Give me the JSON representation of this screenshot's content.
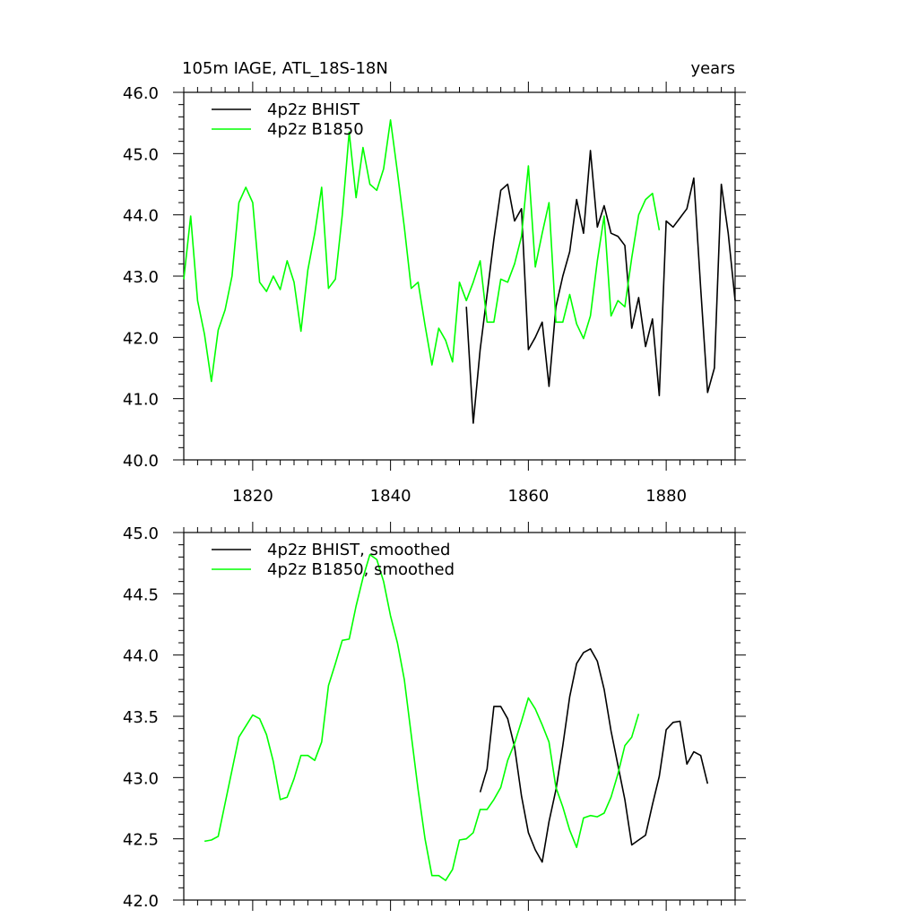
{
  "header": {
    "left_title": "105m IAGE, ATL_18S-18N",
    "right_title": "years"
  },
  "colors": {
    "bhist": "#000000",
    "b1850": "#00ff00",
    "axis": "#000000"
  },
  "chart_data": [
    {
      "type": "line",
      "title": "",
      "xlabel": "",
      "ylabel": "",
      "xlim": [
        1810,
        1890
      ],
      "ylim": [
        40.0,
        46.0
      ],
      "x_ticks": [
        1820,
        1840,
        1860,
        1880
      ],
      "y_ticks": [
        "40.0",
        "41.0",
        "42.0",
        "43.0",
        "44.0",
        "45.0",
        "46.0"
      ],
      "legend_position": "top-left",
      "series": [
        {
          "name": "4p2z BHIST",
          "color": "#000000",
          "x": [
            1851,
            1852,
            1853,
            1854,
            1855,
            1856,
            1857,
            1858,
            1859,
            1860,
            1861,
            1862,
            1863,
            1864,
            1865,
            1866,
            1867,
            1868,
            1869,
            1870,
            1871,
            1872,
            1873,
            1874,
            1875,
            1876,
            1877,
            1878,
            1879,
            1880,
            1881,
            1882,
            1883,
            1884,
            1885,
            1886,
            1887,
            1888,
            1889,
            1890
          ],
          "y": [
            42.5,
            40.6,
            41.8,
            42.7,
            43.6,
            44.4,
            44.5,
            43.9,
            44.1,
            41.8,
            42.0,
            42.25,
            41.2,
            42.5,
            43.0,
            43.4,
            44.25,
            43.7,
            45.05,
            43.8,
            44.15,
            43.7,
            43.65,
            43.5,
            42.15,
            42.65,
            41.85,
            42.3,
            41.05,
            43.9,
            43.8,
            43.95,
            44.1,
            44.6,
            42.8,
            41.1,
            41.5,
            44.5,
            43.7,
            42.6
          ]
        },
        {
          "name": "4p2z B1850",
          "color": "#00ff00",
          "x": [
            1810,
            1811,
            1812,
            1813,
            1814,
            1815,
            1816,
            1817,
            1818,
            1819,
            1820,
            1821,
            1822,
            1823,
            1824,
            1825,
            1826,
            1827,
            1828,
            1829,
            1830,
            1831,
            1832,
            1833,
            1834,
            1835,
            1836,
            1837,
            1838,
            1839,
            1840,
            1841,
            1842,
            1843,
            1844,
            1845,
            1846,
            1847,
            1848,
            1849,
            1850,
            1851,
            1852,
            1853,
            1854,
            1855,
            1856,
            1857,
            1858,
            1859,
            1860,
            1861,
            1862,
            1863,
            1864,
            1865,
            1866,
            1867,
            1868,
            1869,
            1870,
            1871,
            1872,
            1873,
            1874,
            1875,
            1876,
            1877,
            1878,
            1879
          ],
          "y": [
            42.95,
            43.98,
            42.6,
            42.05,
            41.28,
            42.12,
            42.45,
            43.0,
            44.2,
            44.45,
            44.2,
            42.9,
            42.75,
            43.0,
            42.78,
            43.25,
            42.9,
            42.1,
            43.1,
            43.7,
            44.45,
            42.8,
            42.95,
            44.0,
            45.35,
            44.28,
            45.1,
            44.5,
            44.4,
            44.75,
            45.55,
            44.7,
            43.8,
            42.8,
            42.9,
            42.2,
            41.55,
            42.15,
            41.95,
            41.6,
            42.9,
            42.6,
            42.9,
            43.25,
            42.25,
            42.25,
            42.95,
            42.9,
            43.2,
            43.65,
            44.8,
            43.15,
            43.7,
            44.2,
            42.25,
            42.25,
            42.7,
            42.22,
            41.98,
            42.35,
            43.25,
            43.98,
            42.35,
            42.6,
            42.5,
            43.3,
            44.0,
            44.25,
            44.35,
            43.75
          ]
        }
      ]
    },
    {
      "type": "line",
      "title": "",
      "xlabel": "",
      "ylabel": "",
      "xlim": [
        1810,
        1890
      ],
      "ylim": [
        42.0,
        45.0
      ],
      "x_ticks": [
        1820,
        1840,
        1860,
        1880
      ],
      "y_ticks": [
        "42.0",
        "42.5",
        "43.0",
        "43.5",
        "44.0",
        "44.5",
        "45.0"
      ],
      "legend_position": "top-left",
      "series": [
        {
          "name": "4p2z BHIST, smoothed",
          "color": "#000000",
          "x": [
            1853,
            1854,
            1855,
            1856,
            1857,
            1858,
            1859,
            1860,
            1861,
            1862,
            1863,
            1864,
            1865,
            1866,
            1867,
            1868,
            1869,
            1870,
            1871,
            1872,
            1873,
            1874,
            1875,
            1876,
            1877,
            1878,
            1879,
            1880,
            1881,
            1882,
            1883,
            1884,
            1885,
            1886,
            1887
          ],
          "y": [
            42.88,
            43.07,
            43.58,
            43.58,
            43.48,
            43.25,
            42.85,
            42.55,
            42.41,
            42.31,
            42.64,
            42.9,
            43.26,
            43.66,
            43.93,
            44.02,
            44.05,
            43.95,
            43.72,
            43.38,
            43.1,
            42.82,
            42.45,
            42.49,
            42.53,
            42.78,
            43.01,
            43.39,
            43.45,
            43.46,
            43.11,
            43.21,
            43.18,
            42.95,
            null
          ]
        },
        {
          "name": "4p2z B1850, smoothed",
          "color": "#00ff00",
          "x": [
            1813,
            1814,
            1815,
            1816,
            1817,
            1818,
            1819,
            1820,
            1821,
            1822,
            1823,
            1824,
            1825,
            1826,
            1827,
            1828,
            1829,
            1830,
            1831,
            1832,
            1833,
            1834,
            1835,
            1836,
            1837,
            1838,
            1839,
            1840,
            1841,
            1842,
            1843,
            1844,
            1845,
            1846,
            1847,
            1848,
            1849,
            1850,
            1851,
            1852,
            1853,
            1854,
            1855,
            1856,
            1857,
            1858,
            1859,
            1860,
            1861,
            1862,
            1863,
            1864,
            1865,
            1866,
            1867,
            1868,
            1869,
            1870,
            1871,
            1872,
            1873,
            1874,
            1875,
            1876
          ],
          "y": [
            42.48,
            42.49,
            42.52,
            42.79,
            43.06,
            43.33,
            43.42,
            43.51,
            43.48,
            43.35,
            43.13,
            42.82,
            42.84,
            42.99,
            43.18,
            43.18,
            43.14,
            43.29,
            43.75,
            43.93,
            44.12,
            44.13,
            44.4,
            44.63,
            44.82,
            44.78,
            44.6,
            44.32,
            44.1,
            43.8,
            43.35,
            42.9,
            42.5,
            42.2,
            42.2,
            42.16,
            42.25,
            42.49,
            42.5,
            42.55,
            42.74,
            42.74,
            42.82,
            42.92,
            43.14,
            43.28,
            43.46,
            43.65,
            43.56,
            43.43,
            43.29,
            42.92,
            42.76,
            42.57,
            42.43,
            42.67,
            42.69,
            42.68,
            42.71,
            42.84,
            43.03,
            43.26,
            43.33,
            43.52
          ]
        }
      ]
    }
  ]
}
